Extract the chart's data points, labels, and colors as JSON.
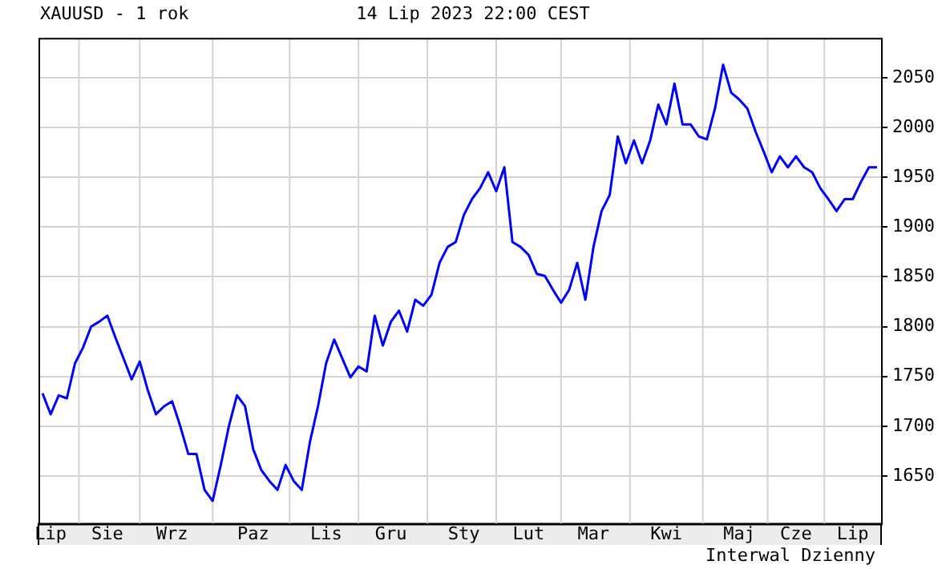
{
  "chart_data": {
    "type": "line",
    "title": "XAUUSD - 1 rok",
    "subtitle": "14 Lip 2023 22:00 CEST",
    "annotations": [
      "Interwal Dzienny"
    ],
    "categories": [
      null,
      "Lip",
      null,
      null,
      null,
      null,
      null,
      null,
      "Sie",
      null,
      null,
      null,
      null,
      null,
      null,
      null,
      "Wrz",
      null,
      null,
      null,
      null,
      null,
      null,
      null,
      null,
      null,
      "Paz",
      null,
      null,
      null,
      null,
      null,
      null,
      null,
      null,
      "Lis",
      null,
      null,
      null,
      null,
      null,
      null,
      null,
      "Gru",
      null,
      null,
      null,
      null,
      null,
      null,
      null,
      null,
      "Sty",
      null,
      null,
      null,
      null,
      null,
      null,
      null,
      "Lut",
      null,
      null,
      null,
      null,
      null,
      null,
      null,
      "Mar",
      null,
      null,
      null,
      null,
      null,
      null,
      null,
      null,
      "Kwi",
      null,
      null,
      null,
      null,
      null,
      null,
      null,
      null,
      "Maj",
      null,
      null,
      null,
      null,
      null,
      null,
      "Cze",
      null,
      null,
      null,
      null,
      null,
      null,
      "Lip",
      null,
      null,
      null
    ],
    "series": [
      {
        "color": "#0000ff",
        "values": [
          1733,
          1712,
          1731,
          1728,
          1763,
          1779,
          1800,
          1805,
          1811,
          1789,
          1768,
          1747,
          1765,
          1736,
          1712,
          1720,
          1725,
          1700,
          1672,
          1672,
          1636,
          1625,
          1661,
          1700,
          1731,
          1720,
          1677,
          1656,
          1645,
          1636,
          1661,
          1645,
          1636,
          1684,
          1720,
          1763,
          1787,
          1768,
          1749,
          1760,
          1755,
          1811,
          1781,
          1805,
          1816,
          1795,
          1827,
          1821,
          1832,
          1864,
          1880,
          1885,
          1912,
          1928,
          1939,
          1955,
          1936,
          1960,
          1885,
          1880,
          1872,
          1853,
          1851,
          1837,
          1824,
          1837,
          1864,
          1827,
          1880,
          1916,
          1932,
          1991,
          1964,
          1987,
          1964,
          1987,
          2023,
          2003,
          2044,
          2003,
          2003,
          1991,
          1988,
          2019,
          2063,
          2035,
          2028,
          2019,
          1996,
          1976,
          1955,
          1971,
          1960,
          1971,
          1960,
          1955,
          1939,
          1928,
          1916,
          1928,
          1928,
          1945,
          1960,
          1960
        ]
      }
    ],
    "ylim": [
      1602,
      2090
    ],
    "yticks": [
      1650,
      1700,
      1750,
      1800,
      1850,
      1900,
      1950,
      2000,
      2050
    ],
    "grid": true,
    "legend": false,
    "marker": "none",
    "line_style": "solid"
  }
}
